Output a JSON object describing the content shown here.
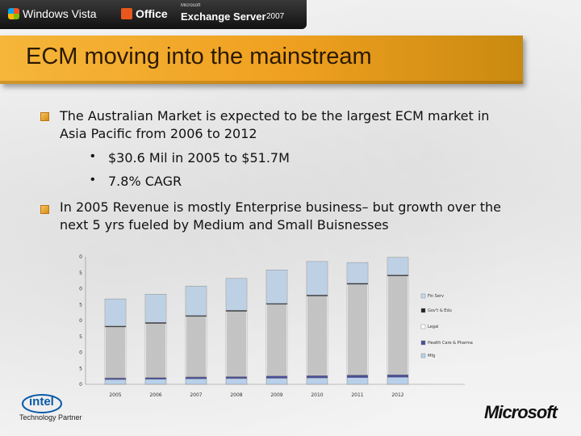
{
  "top_bar": {
    "windows_vista": "Windows Vista",
    "office": "Office",
    "exchange_microsoft": "Microsoft",
    "exchange_server": "Exchange Server",
    "exchange_year": "2007"
  },
  "slide": {
    "title": "ECM moving into the mainstream",
    "bullets": [
      {
        "line1": "The Australian Market is expected to be the largest ECM market in",
        "line2": "Asia Pacific from 2006 to 2012",
        "subs": [
          "$30.6 Mil in 2005 to $51.7M",
          "7.8% CAGR"
        ]
      },
      {
        "line1": "In 2005 Revenue is mostly Enterprise  business– but growth over the",
        "line2": "next 5 yrs fueled by Medium and Small Buisnesses"
      }
    ]
  },
  "chart_data": {
    "type": "bar",
    "stacked": true,
    "categories": [
      "2005",
      "2006",
      "2007",
      "2008",
      "2009",
      "2010",
      "2011",
      "2012"
    ],
    "y_ticks": [
      "0",
      "5",
      "10",
      "15",
      "20",
      "25",
      "30",
      "35",
      "40"
    ],
    "ylim": [
      0,
      40
    ],
    "grid": false,
    "legend_position": "right",
    "series": [
      {
        "name": "Mfg",
        "color": "#b8d0ea",
        "values": [
          1.5,
          1.6,
          1.7,
          1.8,
          1.9,
          2.0,
          2.1,
          2.2
        ]
      },
      {
        "name": "Health Care & Pharma",
        "color": "#4a4e9a",
        "values": [
          0.5,
          0.5,
          0.6,
          0.6,
          0.7,
          0.7,
          0.8,
          0.8
        ]
      },
      {
        "name": "Legal",
        "color": "#ffffff",
        "values": [
          16.0,
          17.0,
          19.0,
          20.5,
          22.5,
          25.0,
          28.5,
          31.0
        ]
      },
      {
        "name": "Gov't & Edu",
        "color": "#222222",
        "values": [
          0.3,
          0.3,
          0.3,
          0.3,
          0.3,
          0.3,
          0.3,
          0.3
        ]
      },
      {
        "name": "Fin Serv",
        "color": "#c8d8ea",
        "values": [
          8.5,
          8.9,
          9.2,
          10.0,
          10.5,
          10.5,
          6.5,
          5.5
        ]
      }
    ]
  },
  "footer": {
    "intel_word": "intel",
    "intel_line": "Technology Partner",
    "ms_logo": "Microsoft"
  },
  "colors": {
    "title_band": "#f0a020",
    "bullet": "#e69a18",
    "top_bar": "#1a1a1a"
  }
}
